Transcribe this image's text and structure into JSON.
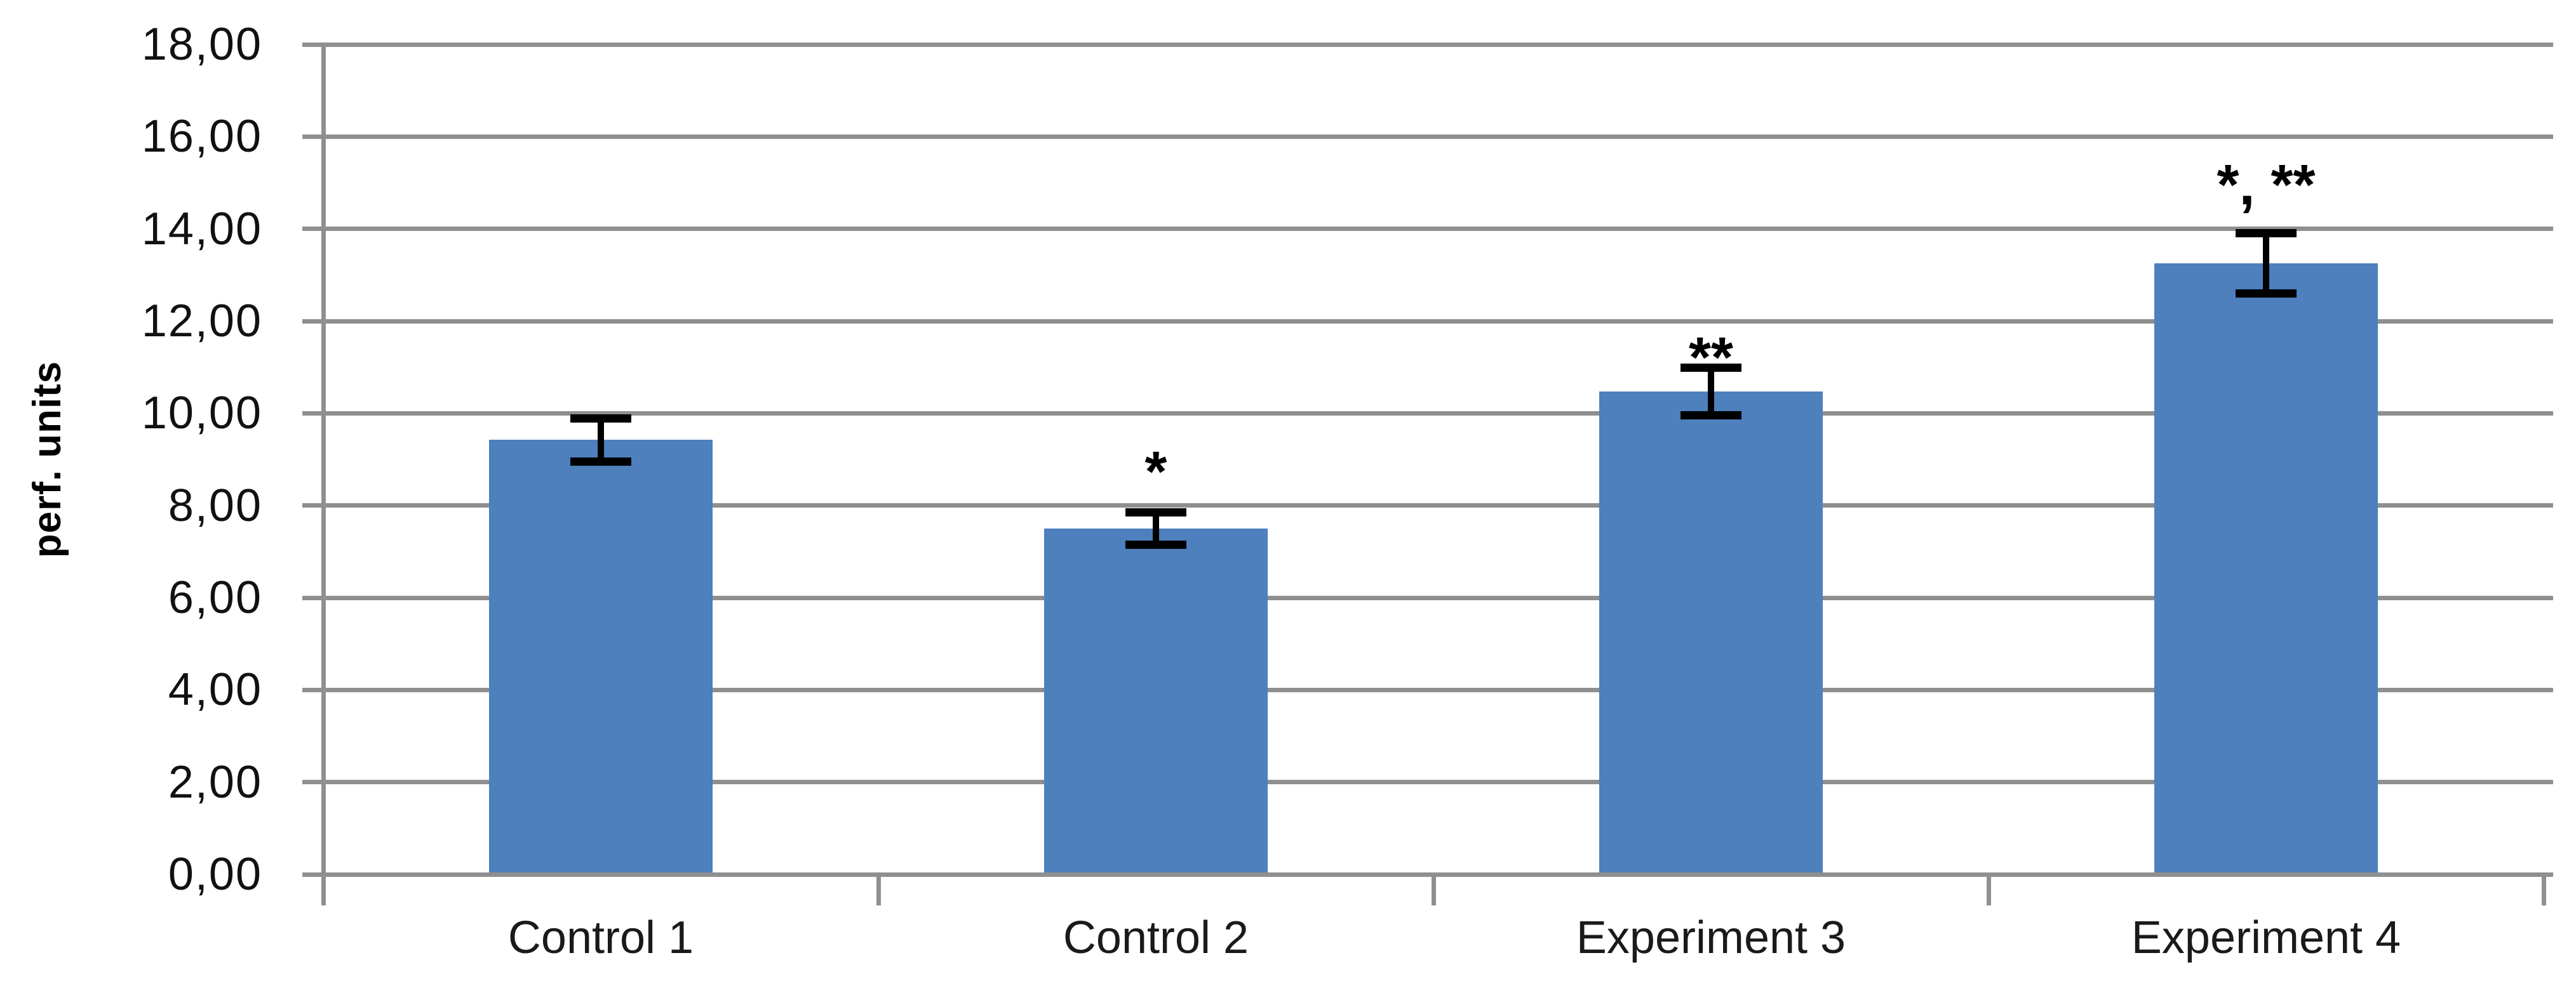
{
  "chart_data": {
    "type": "bar",
    "title": "",
    "xlabel": "",
    "ylabel": "perf. units",
    "categories": [
      "Control 1",
      "Control 2",
      "Experiment 3",
      "Experiment 4"
    ],
    "values": [
      9.42,
      7.5,
      10.47,
      13.25
    ],
    "error_bars": [
      0.47,
      0.35,
      0.52,
      0.65
    ],
    "significance_labels": [
      "",
      "*",
      "**",
      "*, **"
    ],
    "ylim": [
      0,
      18
    ],
    "ytick_step": 2,
    "ytick_labels": [
      "0,00",
      "2,00",
      "4,00",
      "6,00",
      "8,00",
      "10,00",
      "12,00",
      "14,00",
      "16,00",
      "18,00"
    ],
    "decimal_separator": ",",
    "grid": true,
    "legend_position": "none",
    "colors": {
      "bar": "#4D80BD",
      "gridline": "#8F8F8F",
      "axis": "#8F8F8F",
      "error_bar": "#000000",
      "text": "#000000"
    }
  }
}
